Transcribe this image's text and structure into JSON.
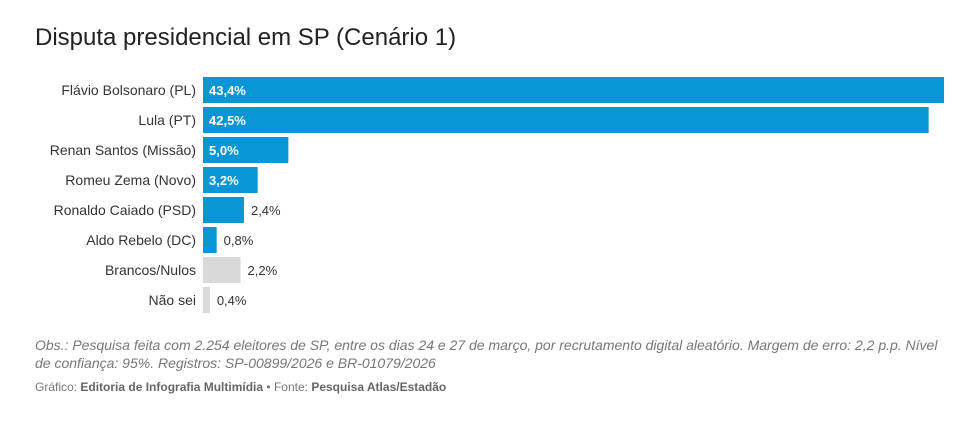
{
  "chart_data": {
    "type": "bar",
    "orientation": "horizontal",
    "title": "Disputa presidencial em SP (Cenário 1)",
    "categories": [
      "Flávio Bolsonaro (PL)",
      "Lula (PT)",
      "Renan Santos (Missão)",
      "Romeu Zema (Novo)",
      "Ronaldo Caiado (PSD)",
      "Aldo Rebelo (DC)",
      "Brancos/Nulos",
      "Não sei"
    ],
    "values": [
      43.4,
      42.5,
      5.0,
      3.2,
      2.4,
      0.8,
      2.2,
      0.4
    ],
    "value_labels": [
      "43,4%",
      "42,5%",
      "5,0%",
      "3,2%",
      "2,4%",
      "0,8%",
      "2,2%",
      "0,4%"
    ],
    "bar_colors": [
      "#0a96d6",
      "#0a96d6",
      "#0a96d6",
      "#0a96d6",
      "#0a96d6",
      "#0a96d6",
      "#d9d9d9",
      "#d9d9d9"
    ],
    "xlim": [
      0,
      43.4
    ],
    "grid": false,
    "xlabel": "",
    "ylabel": ""
  },
  "notes": "Obs.: Pesquisa feita com 2.254 eleitores de SP, entre os dias 24 e 27 de março, por recrutamento digital aleatório. Margem de erro: 2,2 p.p. Nível de confiança: 95%. Registros: SP-00899/2026 e BR-01079/2026",
  "footer": {
    "chart_label": "Gráfico:",
    "chart_author": "Editoria de Infografia Multimídia",
    "separator": "•",
    "source_label": "Fonte:",
    "source": "Pesquisa Atlas/Estadão"
  }
}
